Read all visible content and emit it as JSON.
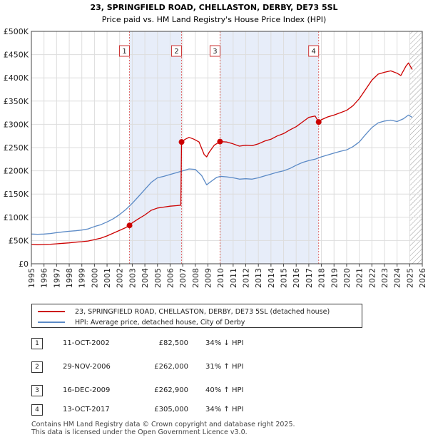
{
  "chart_data": {
    "type": "line",
    "title": "23, SPRINGFIELD ROAD, CHELLASTON, DERBY, DE73 5SL",
    "subtitle": "Price paid vs. HM Land Registry's House Price Index (HPI)",
    "xlim": [
      1995,
      2026
    ],
    "ylim": [
      0,
      500000
    ],
    "x_ticks": [
      1995,
      1996,
      1997,
      1998,
      1999,
      2000,
      2001,
      2002,
      2003,
      2004,
      2005,
      2006,
      2007,
      2008,
      2009,
      2010,
      2011,
      2012,
      2013,
      2014,
      2015,
      2016,
      2017,
      2018,
      2019,
      2020,
      2021,
      2022,
      2023,
      2024,
      2025,
      2026
    ],
    "y_ticks": [
      {
        "value": 0,
        "label": "£0"
      },
      {
        "value": 50000,
        "label": "£50K"
      },
      {
        "value": 100000,
        "label": "£100K"
      },
      {
        "value": 150000,
        "label": "£150K"
      },
      {
        "value": 200000,
        "label": "£200K"
      },
      {
        "value": 250000,
        "label": "£250K"
      },
      {
        "value": 300000,
        "label": "£300K"
      },
      {
        "value": 350000,
        "label": "£350K"
      },
      {
        "value": 400000,
        "label": "£400K"
      },
      {
        "value": 450000,
        "label": "£450K"
      },
      {
        "value": 500000,
        "label": "£500K"
      }
    ],
    "series": [
      {
        "name": "23, SPRINGFIELD ROAD, CHELLASTON, DERBY, DE73 5SL (detached house)",
        "color": "#cc0000",
        "points": [
          [
            1995.0,
            42000
          ],
          [
            1995.5,
            41000
          ],
          [
            1996.0,
            41500
          ],
          [
            1996.5,
            42000
          ],
          [
            1997.0,
            43000
          ],
          [
            1997.5,
            44000
          ],
          [
            1998.0,
            45000
          ],
          [
            1998.5,
            46500
          ],
          [
            1999.0,
            47500
          ],
          [
            1999.5,
            49000
          ],
          [
            2000.0,
            52000
          ],
          [
            2000.5,
            55000
          ],
          [
            2001.0,
            60000
          ],
          [
            2001.5,
            66000
          ],
          [
            2002.0,
            72000
          ],
          [
            2002.5,
            78000
          ],
          [
            2002.78,
            82500
          ],
          [
            2003.0,
            88000
          ],
          [
            2003.5,
            97000
          ],
          [
            2004.0,
            105000
          ],
          [
            2004.5,
            115000
          ],
          [
            2005.0,
            120000
          ],
          [
            2005.5,
            122000
          ],
          [
            2006.0,
            124000
          ],
          [
            2006.5,
            125000
          ],
          [
            2006.85,
            126000
          ],
          [
            2006.91,
            262000
          ],
          [
            2007.2,
            268000
          ],
          [
            2007.5,
            272000
          ],
          [
            2007.9,
            268000
          ],
          [
            2008.3,
            262000
          ],
          [
            2008.7,
            235000
          ],
          [
            2008.9,
            230000
          ],
          [
            2009.1,
            240000
          ],
          [
            2009.5,
            255000
          ],
          [
            2009.96,
            262900
          ],
          [
            2010.5,
            262000
          ],
          [
            2011.0,
            258000
          ],
          [
            2011.5,
            253000
          ],
          [
            2012.0,
            255000
          ],
          [
            2012.5,
            254000
          ],
          [
            2013.0,
            258000
          ],
          [
            2013.5,
            264000
          ],
          [
            2014.0,
            268000
          ],
          [
            2014.5,
            275000
          ],
          [
            2015.0,
            280000
          ],
          [
            2015.5,
            288000
          ],
          [
            2016.0,
            295000
          ],
          [
            2016.5,
            305000
          ],
          [
            2017.0,
            315000
          ],
          [
            2017.5,
            318000
          ],
          [
            2017.78,
            305000
          ],
          [
            2018.0,
            310000
          ],
          [
            2018.5,
            316000
          ],
          [
            2019.0,
            320000
          ],
          [
            2019.5,
            325000
          ],
          [
            2020.0,
            330000
          ],
          [
            2020.5,
            340000
          ],
          [
            2021.0,
            355000
          ],
          [
            2021.5,
            375000
          ],
          [
            2022.0,
            395000
          ],
          [
            2022.5,
            408000
          ],
          [
            2023.0,
            412000
          ],
          [
            2023.5,
            415000
          ],
          [
            2024.0,
            410000
          ],
          [
            2024.3,
            405000
          ],
          [
            2024.7,
            425000
          ],
          [
            2024.9,
            432000
          ],
          [
            2025.2,
            418000
          ]
        ]
      },
      {
        "name": "HPI: Average price, detached house, City of Derby",
        "color": "#5b8ac6",
        "points": [
          [
            1995.0,
            64000
          ],
          [
            1995.5,
            63500
          ],
          [
            1996.0,
            64000
          ],
          [
            1996.5,
            65000
          ],
          [
            1997.0,
            67000
          ],
          [
            1997.5,
            68500
          ],
          [
            1998.0,
            70000
          ],
          [
            1998.5,
            71000
          ],
          [
            1999.0,
            72500
          ],
          [
            1999.5,
            75000
          ],
          [
            2000.0,
            80000
          ],
          [
            2000.5,
            84000
          ],
          [
            2001.0,
            90000
          ],
          [
            2001.5,
            97000
          ],
          [
            2002.0,
            106000
          ],
          [
            2002.5,
            117000
          ],
          [
            2003.0,
            130000
          ],
          [
            2003.5,
            145000
          ],
          [
            2004.0,
            160000
          ],
          [
            2004.5,
            175000
          ],
          [
            2005.0,
            185000
          ],
          [
            2005.5,
            188000
          ],
          [
            2006.0,
            192000
          ],
          [
            2006.5,
            196000
          ],
          [
            2007.0,
            200000
          ],
          [
            2007.5,
            204000
          ],
          [
            2008.0,
            203000
          ],
          [
            2008.5,
            190000
          ],
          [
            2008.9,
            170000
          ],
          [
            2009.3,
            178000
          ],
          [
            2009.7,
            186000
          ],
          [
            2010.0,
            188000
          ],
          [
            2010.5,
            187000
          ],
          [
            2011.0,
            185000
          ],
          [
            2011.5,
            182000
          ],
          [
            2012.0,
            183000
          ],
          [
            2012.5,
            182000
          ],
          [
            2013.0,
            185000
          ],
          [
            2013.5,
            189000
          ],
          [
            2014.0,
            193000
          ],
          [
            2014.5,
            197000
          ],
          [
            2015.0,
            200000
          ],
          [
            2015.5,
            205000
          ],
          [
            2016.0,
            212000
          ],
          [
            2016.5,
            218000
          ],
          [
            2017.0,
            222000
          ],
          [
            2017.5,
            225000
          ],
          [
            2018.0,
            230000
          ],
          [
            2018.5,
            234000
          ],
          [
            2019.0,
            238000
          ],
          [
            2019.5,
            242000
          ],
          [
            2020.0,
            245000
          ],
          [
            2020.5,
            252000
          ],
          [
            2021.0,
            262000
          ],
          [
            2021.5,
            278000
          ],
          [
            2022.0,
            293000
          ],
          [
            2022.5,
            303000
          ],
          [
            2023.0,
            307000
          ],
          [
            2023.5,
            309000
          ],
          [
            2024.0,
            306000
          ],
          [
            2024.5,
            312000
          ],
          [
            2024.9,
            320000
          ],
          [
            2025.2,
            315000
          ]
        ]
      }
    ],
    "sales": [
      {
        "num": "1",
        "x": 2002.78,
        "y": 82500
      },
      {
        "num": "2",
        "x": 2006.91,
        "y": 262000
      },
      {
        "num": "3",
        "x": 2009.96,
        "y": 262900
      },
      {
        "num": "4",
        "x": 2017.78,
        "y": 305000
      }
    ],
    "shaded_ranges": [
      [
        2002.78,
        2006.91
      ],
      [
        2009.96,
        2017.78
      ]
    ],
    "hatch_from": 2025.0
  },
  "legend": {
    "property_label": "23, SPRINGFIELD ROAD, CHELLASTON, DERBY, DE73 5SL (detached house)",
    "hpi_label": "HPI: Average price, detached house, City of Derby",
    "property_color": "#cc0000",
    "hpi_color": "#5b8ac6"
  },
  "transactions": [
    {
      "num": "1",
      "date": "11-OCT-2002",
      "price": "£82,500",
      "hpi": "34% ↓ HPI"
    },
    {
      "num": "2",
      "date": "29-NOV-2006",
      "price": "£262,000",
      "hpi": "31% ↑ HPI"
    },
    {
      "num": "3",
      "date": "16-DEC-2009",
      "price": "£262,900",
      "hpi": "40% ↑ HPI"
    },
    {
      "num": "4",
      "date": "13-OCT-2017",
      "price": "£305,000",
      "hpi": "34% ↑ HPI"
    }
  ],
  "footer": {
    "line1": "Contains HM Land Registry data © Crown copyright and database right 2025.",
    "line2": "This data is licensed under the Open Government Licence v3.0."
  }
}
